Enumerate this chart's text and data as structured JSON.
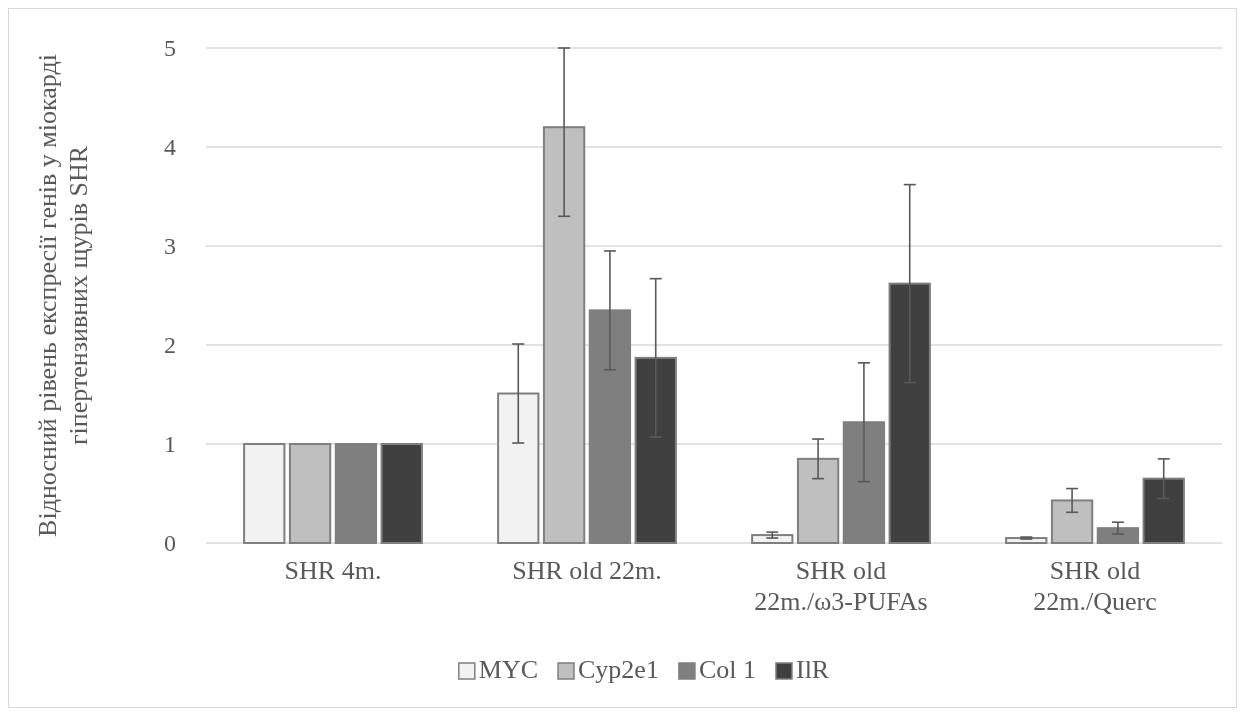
{
  "chart_data": {
    "type": "bar",
    "ylabel": "Відносний рівень експресії генів у міокарді гіпертензивних щурів SHR",
    "categories": [
      "SHR 4m.",
      "SHR old 22m.",
      "SHR old 22m./ω3-PUFAs",
      "SHR old 22m./Querc"
    ],
    "series": [
      {
        "name": "MYC",
        "color": "#f2f2f2",
        "values": [
          1,
          1.51,
          0.08,
          0.05
        ],
        "errors": [
          null,
          0.5,
          0.03,
          0.01
        ]
      },
      {
        "name": "Cyp2e1",
        "color": "#bfbfbf",
        "values": [
          1,
          4.2,
          0.85,
          0.43
        ],
        "errors": [
          null,
          [
            3.3,
            5.0
          ],
          0.2,
          0.12
        ]
      },
      {
        "name": "Col 1",
        "color": "#7f7f7f",
        "values": [
          1,
          2.35,
          1.22,
          0.15
        ],
        "errors": [
          null,
          0.6,
          0.6,
          0.06
        ]
      },
      {
        "name": "IlR",
        "color": "#404040",
        "values": [
          1,
          1.87,
          2.62,
          0.65
        ],
        "errors": [
          null,
          0.8,
          1.0,
          0.2
        ]
      }
    ],
    "ylim": [
      0,
      5
    ],
    "yticks": [
      0,
      1,
      2,
      3,
      4,
      5
    ],
    "grid": "y",
    "legend": "bottom"
  }
}
